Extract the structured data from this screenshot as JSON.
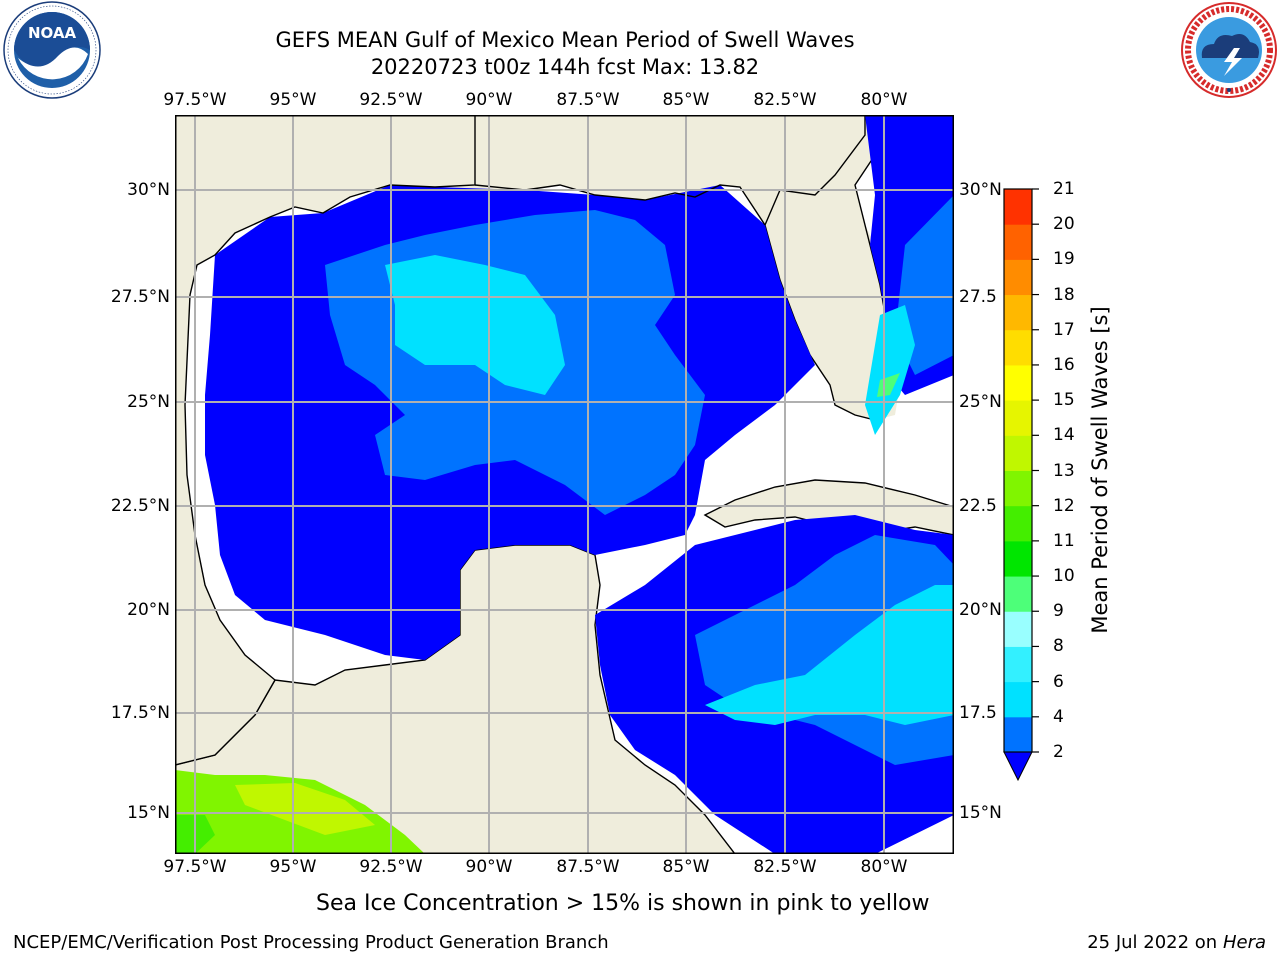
{
  "header": {
    "title_line1": "GEFS MEAN Gulf of Mexico Mean Period of Swell Waves",
    "title_line2": "20220723 t00z 144h fcst   Max: 13.82"
  },
  "logos": {
    "left": {
      "icon": "noaa-logo",
      "text": "NOAA",
      "ring_text": "NATIONAL OCEANIC AND ATMOSPHERIC ADMINISTRATION · U.S. DEPARTMENT OF COMMERCE"
    },
    "right": {
      "icon": "national-weather-service-logo",
      "ring_text": "NATIONAL WEATHER SERVICE"
    }
  },
  "map": {
    "lon_ticks": [
      "97.5°W",
      "95°W",
      "92.5°W",
      "90°W",
      "87.5°W",
      "85°W",
      "82.5°W",
      "80°W"
    ],
    "lon_values": [
      -97.5,
      -95,
      -92.5,
      -90,
      -87.5,
      -85,
      -82.5,
      -80
    ],
    "lat_ticks_left": [
      "30°N",
      "27.5°N",
      "25°N",
      "22.5°N",
      "20°N",
      "17.5°N",
      "15°N"
    ],
    "lat_ticks_right": [
      "30°N",
      "27.5",
      "25°N",
      "22.5",
      "20°N",
      "17.5",
      "15°N"
    ],
    "lat_values": [
      30,
      27.5,
      25,
      22.5,
      20,
      17.5,
      15
    ],
    "lon_range": [
      -98,
      -78
    ],
    "lat_range": [
      14,
      31.5
    ],
    "grid": true,
    "land_color": "#efeddc",
    "ocean_color": "#ffffff"
  },
  "colorbar": {
    "label": "Mean Period of Swell Waves [s]",
    "ticks": [
      "2",
      "4",
      "6",
      "8",
      "9",
      "10",
      "11",
      "12",
      "13",
      "14",
      "15",
      "16",
      "17",
      "18",
      "19",
      "20",
      "21"
    ],
    "colors": [
      "#0073ff",
      "#00e1ff",
      "#33f0ff",
      "#99ffff",
      "#4dff79",
      "#00e600",
      "#44ee00",
      "#80f500",
      "#c0f700",
      "#e6f500",
      "#ffff00",
      "#ffdd00",
      "#ffb800",
      "#ff8c00",
      "#ff6200",
      "#ff3200"
    ],
    "under_color": "#0000ff"
  },
  "sea_ice_note": "Sea Ice Concentration > 15% is shown in pink to yellow",
  "footer": {
    "left": "NCEP/EMC/Verification Post Processing Product Generation Branch",
    "right_prefix": "25 Jul 2022 on ",
    "right_machine": "Hera"
  }
}
